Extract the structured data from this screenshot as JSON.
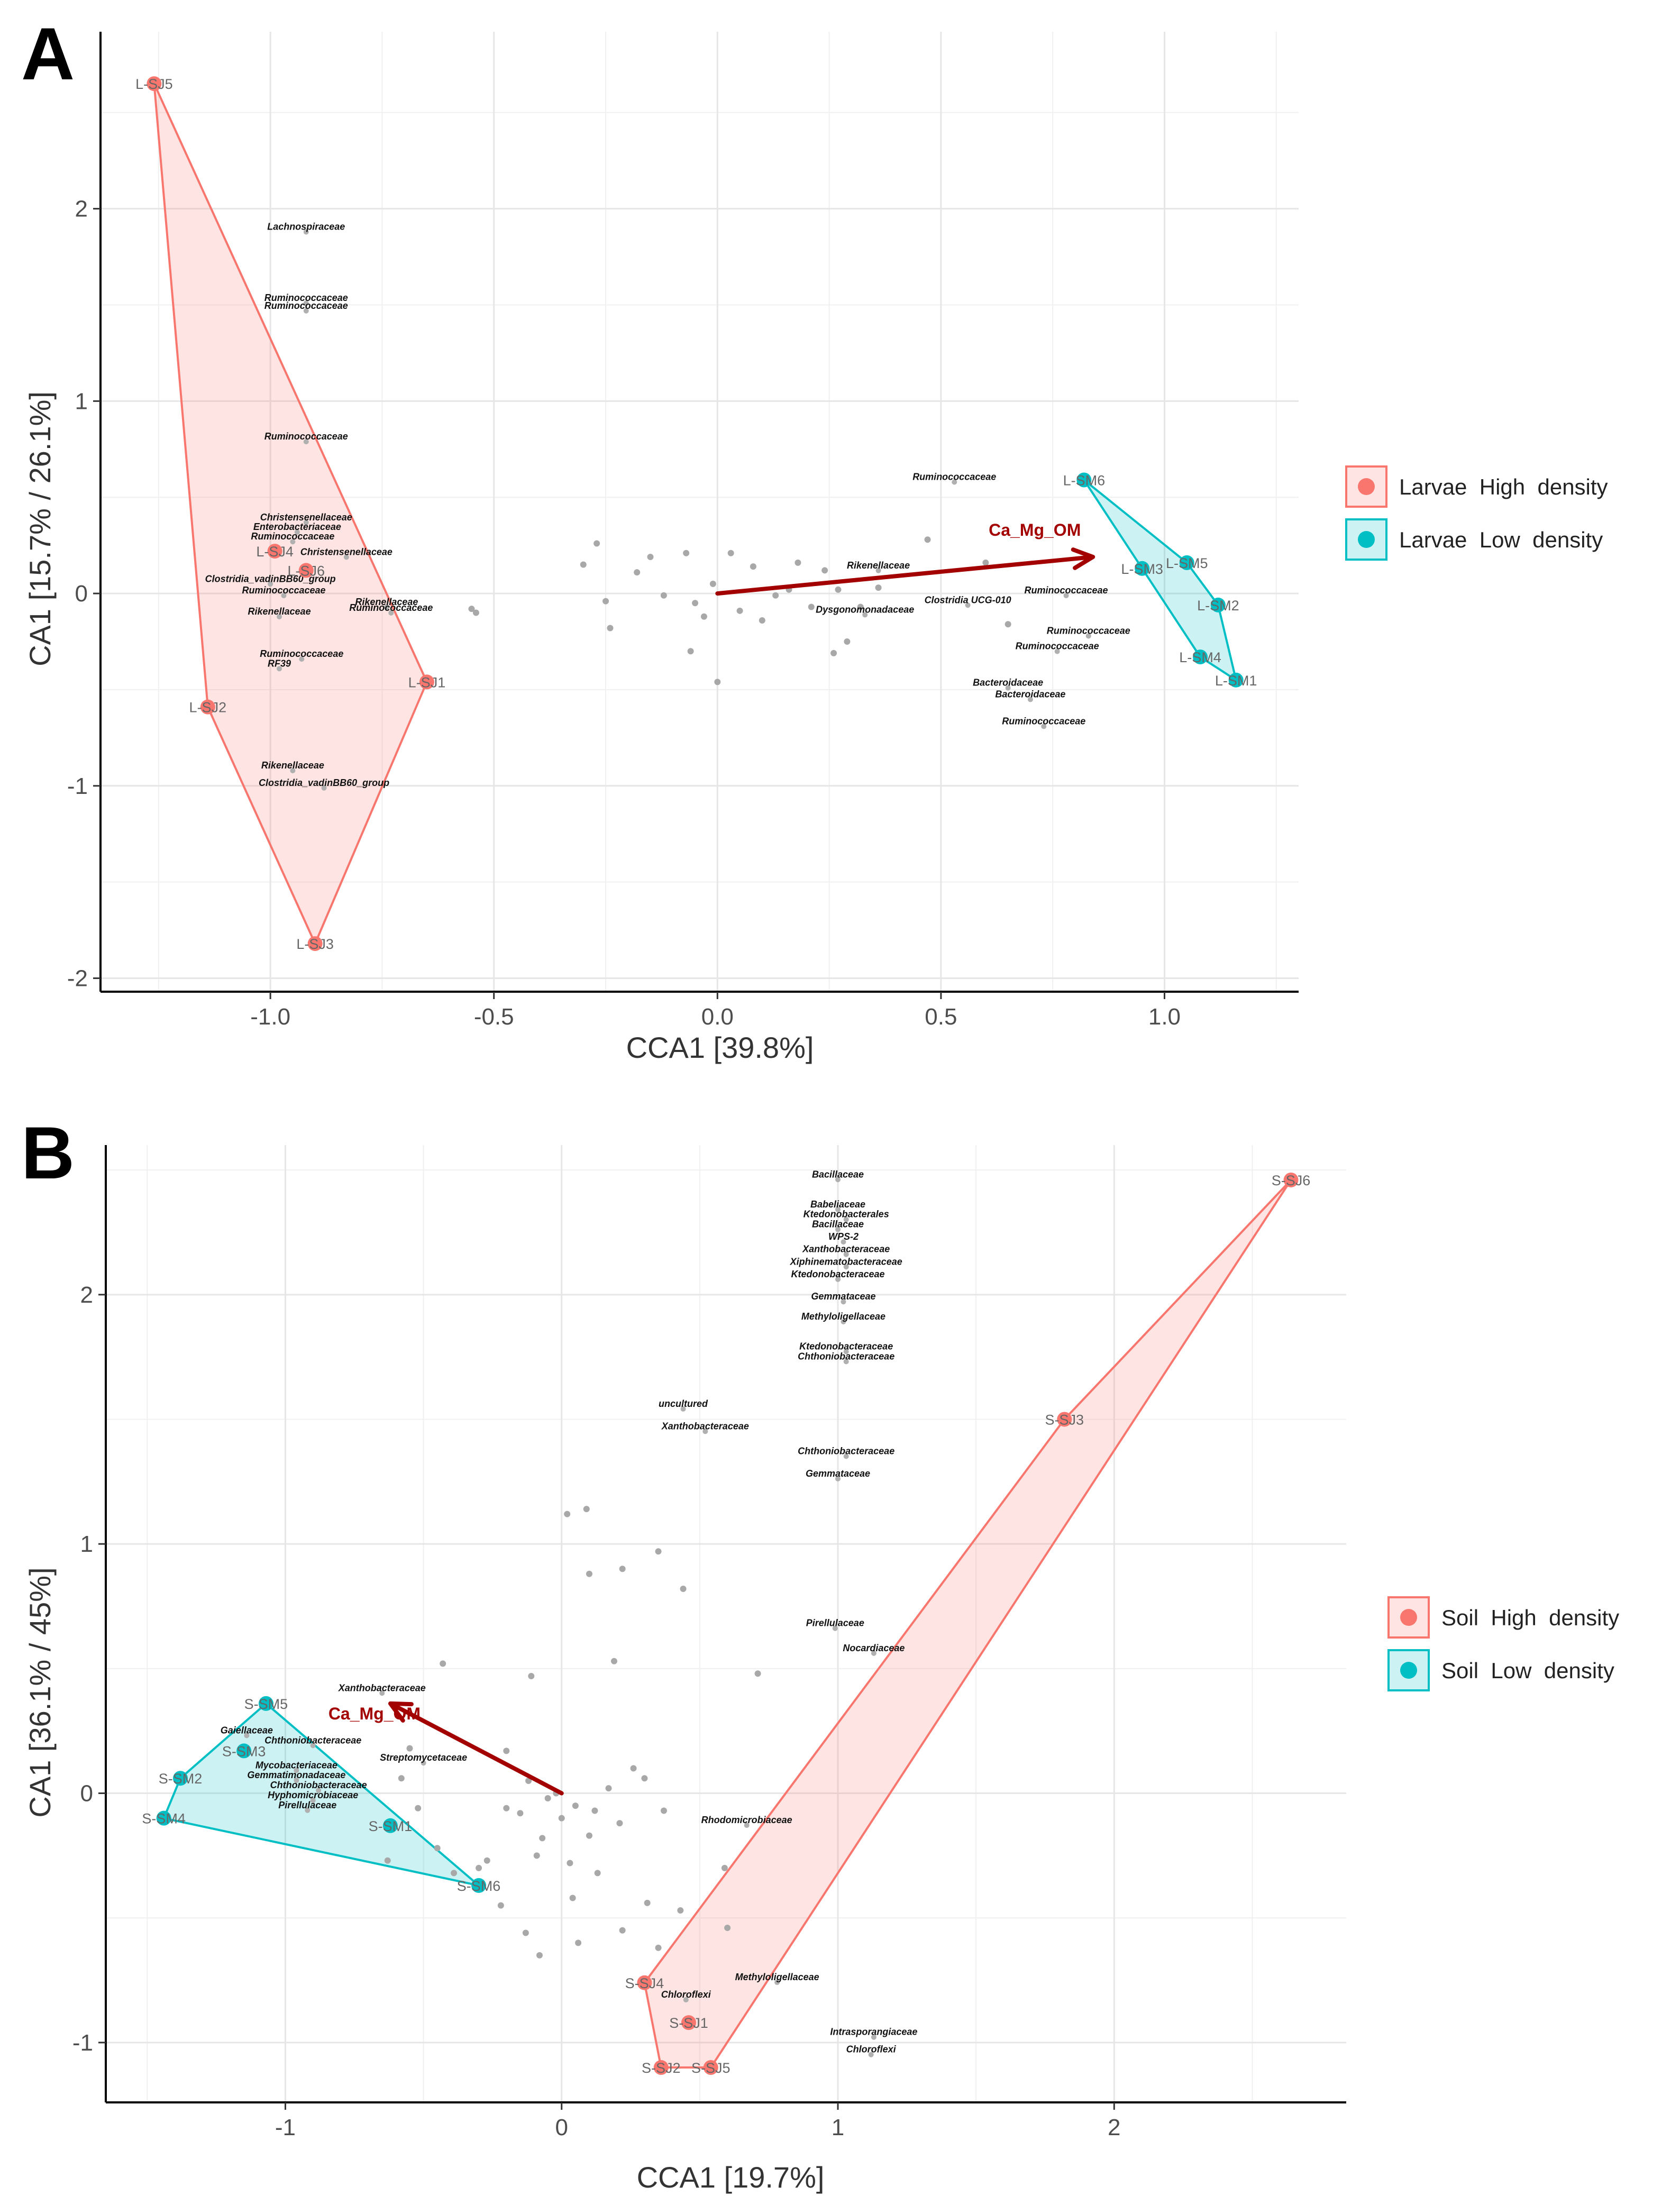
{
  "panels": [
    {
      "panel_label": "A",
      "chart_data": {
        "type": "scatter",
        "xlabel": "CCA1 [39.8%]",
        "ylabel": "CA1 [15.7% / 26.1%]",
        "xlim": [
          -1.38,
          1.3
        ],
        "ylim": [
          -2.07,
          2.92
        ],
        "xticks": [
          -1.0,
          -0.5,
          0.0,
          0.5,
          1.0
        ],
        "xtick_labels": [
          "-1.0",
          "-0.5",
          "0.0",
          "0.5",
          "1.0"
        ],
        "yticks": [
          -2,
          -1,
          0,
          1,
          2
        ],
        "ytick_labels": [
          "-2",
          "-1",
          "0",
          "1",
          "2"
        ],
        "grid": true,
        "legend_position": "right",
        "groups": [
          {
            "name": "Larvae  High  density",
            "color": "#F8766D",
            "points": [
              {
                "label": "L-SJ5",
                "x": -1.26,
                "y": 2.65
              },
              {
                "label": "L-SJ4",
                "x": -0.99,
                "y": 0.22
              },
              {
                "label": "L-SJ6",
                "x": -0.92,
                "y": 0.12
              },
              {
                "label": "L-SJ1",
                "x": -0.65,
                "y": -0.46
              },
              {
                "label": "L-SJ2",
                "x": -1.14,
                "y": -0.59
              },
              {
                "label": "L-SJ3",
                "x": -0.9,
                "y": -1.82
              }
            ],
            "hull": [
              "L-SJ5",
              "L-SJ1",
              "L-SJ3",
              "L-SJ2"
            ]
          },
          {
            "name": "Larvae  Low  density",
            "color": "#00BFC4",
            "points": [
              {
                "label": "L-SM6",
                "x": 0.82,
                "y": 0.59
              },
              {
                "label": "L-SM5",
                "x": 1.05,
                "y": 0.16
              },
              {
                "label": "L-SM3",
                "x": 0.95,
                "y": 0.13
              },
              {
                "label": "L-SM2",
                "x": 1.12,
                "y": -0.06
              },
              {
                "label": "L-SM4",
                "x": 1.08,
                "y": -0.33
              },
              {
                "label": "L-SM1",
                "x": 1.16,
                "y": -0.45
              }
            ],
            "hull": [
              "L-SM6",
              "L-SM5",
              "L-SM2",
              "L-SM1",
              "L-SM4",
              "L-SM3"
            ]
          }
        ],
        "env_arrow": {
          "label": "Ca_Mg_OM",
          "x0": 0,
          "y0": 0,
          "x1": 0.84,
          "y1": 0.19
        },
        "taxa": [
          {
            "label": "Lachnospiraceae",
            "x": -0.92,
            "y": 1.89
          },
          {
            "label": "Ruminococcaceae",
            "x": -0.92,
            "y": 1.52
          },
          {
            "label": "Ruminococcaceae",
            "x": -0.92,
            "y": 1.48
          },
          {
            "label": "Ruminococcaceae",
            "x": -0.92,
            "y": 0.8
          },
          {
            "label": "Christensenellaceae",
            "x": -0.92,
            "y": 0.38
          },
          {
            "label": "Enterobacteriaceae",
            "x": -0.94,
            "y": 0.33
          },
          {
            "label": "Ruminococcaceae",
            "x": -0.95,
            "y": 0.28
          },
          {
            "label": "Christensenellaceae",
            "x": -0.83,
            "y": 0.2
          },
          {
            "label": "Clostridia_vadinBB60_group",
            "x": -1.0,
            "y": 0.06
          },
          {
            "label": "Ruminococcaceae",
            "x": -0.97,
            "y": 0.0
          },
          {
            "label": "Rikenellaceae",
            "x": -0.74,
            "y": -0.06
          },
          {
            "label": "Ruminococcaceae",
            "x": -0.73,
            "y": -0.09
          },
          {
            "label": "Rikenellaceae",
            "x": -0.98,
            "y": -0.11
          },
          {
            "label": "Ruminococcaceae",
            "x": -0.93,
            "y": -0.33
          },
          {
            "label": "RF39",
            "x": -0.98,
            "y": -0.38
          },
          {
            "label": "Rikenellaceae",
            "x": -0.95,
            "y": -0.91
          },
          {
            "label": "Clostridia_vadinBB60_group",
            "x": -0.88,
            "y": -1.0
          },
          {
            "label": "Ruminococcaceae",
            "x": 0.53,
            "y": 0.59
          },
          {
            "label": "Rikenellaceae",
            "x": 0.36,
            "y": 0.13
          },
          {
            "label": "Clostridia UCG-010",
            "x": 0.56,
            "y": -0.05
          },
          {
            "label": "Dysgonomonadaceae",
            "x": 0.33,
            "y": -0.1
          },
          {
            "label": "Ruminococcaceae",
            "x": 0.78,
            "y": 0.0
          },
          {
            "label": "Ruminococcaceae",
            "x": 0.83,
            "y": -0.21
          },
          {
            "label": "Ruminococcaceae",
            "x": 0.76,
            "y": -0.29
          },
          {
            "label": "Bacteroidaceae",
            "x": 0.65,
            "y": -0.48
          },
          {
            "label": "Bacteroidaceae",
            "x": 0.7,
            "y": -0.54
          },
          {
            "label": "Ruminococcaceae",
            "x": 0.73,
            "y": -0.68
          }
        ],
        "unlabeled_taxa": [
          [
            -0.3,
            0.15
          ],
          [
            -0.27,
            0.26
          ],
          [
            -0.25,
            -0.04
          ],
          [
            -0.24,
            -0.18
          ],
          [
            -0.18,
            0.11
          ],
          [
            -0.15,
            0.19
          ],
          [
            -0.12,
            -0.01
          ],
          [
            -0.07,
            0.21
          ],
          [
            -0.05,
            -0.05
          ],
          [
            -0.03,
            -0.12
          ],
          [
            -0.01,
            0.05
          ],
          [
            0.03,
            0.21
          ],
          [
            0.05,
            -0.09
          ],
          [
            0.08,
            0.14
          ],
          [
            0.1,
            -0.14
          ],
          [
            0.13,
            -0.01
          ],
          [
            0.16,
            0.02
          ],
          [
            0.18,
            0.16
          ],
          [
            0.21,
            -0.07
          ],
          [
            0.24,
            0.12
          ],
          [
            0.26,
            -0.31
          ],
          [
            0.27,
            0.02
          ],
          [
            0.29,
            -0.25
          ],
          [
            0.32,
            -0.07
          ],
          [
            0.36,
            0.03
          ],
          [
            -0.06,
            -0.3
          ],
          [
            0.0,
            -0.46
          ],
          [
            0.47,
            0.28
          ],
          [
            0.6,
            0.16
          ],
          [
            -0.55,
            -0.08
          ],
          [
            -0.54,
            -0.1
          ],
          [
            0.65,
            -0.16
          ]
        ]
      }
    },
    {
      "panel_label": "B",
      "chart_data": {
        "type": "scatter",
        "xlabel": "CCA1 [19.7%]",
        "ylabel": "CA1 [36.1% / 45%]",
        "xlim": [
          -1.65,
          2.84
        ],
        "ylim": [
          -1.24,
          2.6
        ],
        "xticks": [
          -1,
          0,
          1,
          2
        ],
        "xtick_labels": [
          "-1",
          "0",
          "1",
          "2"
        ],
        "yticks": [
          -1,
          0,
          1,
          2
        ],
        "ytick_labels": [
          "-1",
          "0",
          "1",
          "2"
        ],
        "grid": true,
        "legend_position": "right",
        "groups": [
          {
            "name": "Soil  High  density",
            "color": "#F8766D",
            "points": [
              {
                "label": "S-SJ6",
                "x": 2.64,
                "y": 2.46
              },
              {
                "label": "S-SJ3",
                "x": 1.82,
                "y": 1.5
              },
              {
                "label": "S-SJ4",
                "x": 0.3,
                "y": -0.76
              },
              {
                "label": "S-SJ1",
                "x": 0.46,
                "y": -0.92
              },
              {
                "label": "S-SJ2",
                "x": 0.36,
                "y": -1.1
              },
              {
                "label": "S-SJ5",
                "x": 0.54,
                "y": -1.1
              }
            ],
            "hull": [
              "S-SJ6",
              "S-SJ5",
              "S-SJ2",
              "S-SJ4",
              "S-SJ3"
            ]
          },
          {
            "name": "Soil  Low  density",
            "color": "#00BFC4",
            "points": [
              {
                "label": "S-SM5",
                "x": -1.07,
                "y": 0.36
              },
              {
                "label": "S-SM3",
                "x": -1.15,
                "y": 0.17
              },
              {
                "label": "S-SM2",
                "x": -1.38,
                "y": 0.06
              },
              {
                "label": "S-SM4",
                "x": -1.44,
                "y": -0.1
              },
              {
                "label": "S-SM1",
                "x": -0.62,
                "y": -0.13
              },
              {
                "label": "S-SM6",
                "x": -0.3,
                "y": -0.37
              }
            ],
            "hull": [
              "S-SM5",
              "S-SM6",
              "S-SM4",
              "S-SM2"
            ]
          }
        ],
        "env_arrow": {
          "label": "Ca_Mg_OM",
          "x0": 0,
          "y0": 0,
          "x1": -0.62,
          "y1": 0.36
        },
        "taxa": [
          {
            "label": "Bacillaceae",
            "x": 1.0,
            "y": 2.47
          },
          {
            "label": "Babeliaceae",
            "x": 1.0,
            "y": 2.35
          },
          {
            "label": "Ktedonobacterales",
            "x": 1.03,
            "y": 2.31
          },
          {
            "label": "Bacillaceae",
            "x": 1.0,
            "y": 2.27
          },
          {
            "label": "WPS-2",
            "x": 1.02,
            "y": 2.22
          },
          {
            "label": "Xanthobacteraceae",
            "x": 1.03,
            "y": 2.17
          },
          {
            "label": "Xiphinematobacteraceae",
            "x": 1.03,
            "y": 2.12
          },
          {
            "label": "Ktedonobacteraceae",
            "x": 1.0,
            "y": 2.07
          },
          {
            "label": "Gemmataceae",
            "x": 1.02,
            "y": 1.98
          },
          {
            "label": "Methyloligellaceae",
            "x": 1.02,
            "y": 1.9
          },
          {
            "label": "Ktedonobacteraceae",
            "x": 1.03,
            "y": 1.78
          },
          {
            "label": "Chthoniobacteraceae",
            "x": 1.03,
            "y": 1.74
          },
          {
            "label": "uncultured",
            "x": 0.44,
            "y": 1.55
          },
          {
            "label": "Xanthobacteraceae",
            "x": 0.52,
            "y": 1.46
          },
          {
            "label": "Chthoniobacteraceae",
            "x": 1.03,
            "y": 1.36
          },
          {
            "label": "Gemmataceae",
            "x": 1.0,
            "y": 1.27
          },
          {
            "label": "Pirellulaceae",
            "x": 0.99,
            "y": 0.67
          },
          {
            "label": "Nocardiaceae",
            "x": 1.13,
            "y": 0.57
          },
          {
            "label": "Xanthobacteraceae",
            "x": -0.65,
            "y": 0.41
          },
          {
            "label": "Gaiellaceae",
            "x": -1.14,
            "y": 0.24
          },
          {
            "label": "Chthoniobacteraceae",
            "x": -0.9,
            "y": 0.2
          },
          {
            "label": "Streptomycetaceae",
            "x": -0.5,
            "y": 0.13
          },
          {
            "label": "Mycobacteriaceae",
            "x": -0.96,
            "y": 0.1
          },
          {
            "label": "Gemmatimonadaceae",
            "x": -0.96,
            "y": 0.06
          },
          {
            "label": "Chthoniobacteraceae",
            "x": -0.88,
            "y": 0.02
          },
          {
            "label": "Hyphomicrobiaceae",
            "x": -0.9,
            "y": -0.02
          },
          {
            "label": "Pirellulaceae",
            "x": -0.92,
            "y": -0.06
          },
          {
            "label": "Rhodomicrobiaceae",
            "x": 0.67,
            "y": -0.12
          },
          {
            "label": "Methyloligellaceae",
            "x": 0.78,
            "y": -0.75
          },
          {
            "label": "Chloroflexi",
            "x": 0.45,
            "y": -0.82
          },
          {
            "label": "Intrasporangiaceae",
            "x": 1.13,
            "y": -0.97
          },
          {
            "label": "Chloroflexi",
            "x": 1.12,
            "y": -1.04
          }
        ],
        "unlabeled_taxa": [
          [
            0.02,
            1.12
          ],
          [
            0.09,
            1.14
          ],
          [
            0.35,
            0.97
          ],
          [
            0.1,
            0.88
          ],
          [
            0.22,
            0.9
          ],
          [
            0.44,
            0.82
          ],
          [
            0.19,
            0.53
          ],
          [
            0.71,
            0.48
          ],
          [
            -0.11,
            0.47
          ],
          [
            -0.43,
            0.52
          ],
          [
            -0.55,
            0.18
          ],
          [
            -0.58,
            0.06
          ],
          [
            -0.52,
            -0.06
          ],
          [
            -0.45,
            -0.22
          ],
          [
            -0.39,
            -0.32
          ],
          [
            -0.2,
            0.17
          ],
          [
            -0.12,
            0.05
          ],
          [
            -0.2,
            -0.06
          ],
          [
            -0.05,
            -0.02
          ],
          [
            0.05,
            -0.05
          ],
          [
            0.12,
            -0.07
          ],
          [
            0.17,
            0.02
          ],
          [
            0.21,
            -0.12
          ],
          [
            0.26,
            0.1
          ],
          [
            0.3,
            0.06
          ],
          [
            -0.07,
            -0.18
          ],
          [
            -0.09,
            -0.25
          ],
          [
            0.03,
            -0.28
          ],
          [
            0.13,
            -0.32
          ],
          [
            -0.22,
            -0.45
          ],
          [
            -0.13,
            -0.56
          ],
          [
            0.22,
            -0.55
          ],
          [
            0.31,
            -0.44
          ],
          [
            0.43,
            -0.47
          ],
          [
            0.35,
            -0.62
          ],
          [
            -0.08,
            -0.65
          ],
          [
            0.06,
            -0.6
          ],
          [
            0.1,
            -0.17
          ],
          [
            -0.15,
            -0.08
          ],
          [
            0.0,
            -0.1
          ],
          [
            -0.02,
            0.0
          ],
          [
            0.04,
            -0.42
          ],
          [
            0.37,
            -0.07
          ],
          [
            0.59,
            -0.3
          ],
          [
            0.6,
            -0.54
          ],
          [
            -0.3,
            -0.3
          ],
          [
            -0.27,
            -0.27
          ],
          [
            -0.63,
            -0.27
          ]
        ]
      }
    }
  ]
}
